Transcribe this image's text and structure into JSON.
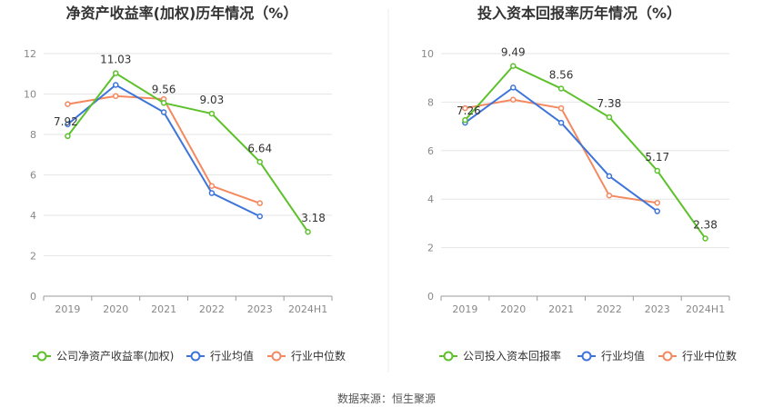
{
  "source_label": "数据来源：恒生聚源",
  "colors": {
    "company": "#5cc12b",
    "industry_avg": "#3d74d9",
    "industry_median": "#f4895f"
  },
  "legend": {
    "industry_avg": "行业均值",
    "industry_median": "行业中位数"
  },
  "chart_data": [
    {
      "type": "line",
      "title": "净资产收益率(加权)历年情况（%）",
      "categories": [
        "2019",
        "2020",
        "2021",
        "2022",
        "2023",
        "2024H1"
      ],
      "ylim": [
        0,
        12
      ],
      "yticks": [
        0,
        2,
        4,
        6,
        8,
        10,
        12
      ],
      "grid": true,
      "legend_position": "bottom",
      "series": [
        {
          "name": "公司净资产收益率(加权)",
          "key": "company",
          "values": [
            7.92,
            11.03,
            9.56,
            9.03,
            6.64,
            3.18
          ],
          "labels": [
            "7.92",
            "11.03",
            "9.56",
            "9.03",
            "6.64",
            "3.18"
          ]
        },
        {
          "name": "行业均值",
          "key": "industry_avg",
          "values": [
            8.5,
            10.45,
            9.1,
            5.1,
            3.95,
            null
          ]
        },
        {
          "name": "行业中位数",
          "key": "industry_median",
          "values": [
            9.5,
            9.9,
            9.75,
            5.45,
            4.6,
            null
          ]
        }
      ]
    },
    {
      "type": "line",
      "title": "投入资本回报率历年情况（%）",
      "categories": [
        "2019",
        "2020",
        "2021",
        "2022",
        "2023",
        "2024H1"
      ],
      "ylim": [
        0,
        10
      ],
      "yticks": [
        0,
        2,
        4,
        6,
        8,
        10
      ],
      "grid": true,
      "legend_position": "bottom",
      "series": [
        {
          "name": "公司投入资本回报率",
          "key": "company",
          "values": [
            7.26,
            9.49,
            8.56,
            7.38,
            5.17,
            2.38
          ],
          "labels": [
            "7.26",
            "9.49",
            "8.56",
            "7.38",
            "5.17",
            "2.38"
          ]
        },
        {
          "name": "行业均值",
          "key": "industry_avg",
          "values": [
            7.15,
            8.6,
            7.15,
            4.95,
            3.5,
            null
          ]
        },
        {
          "name": "行业中位数",
          "key": "industry_median",
          "values": [
            7.75,
            8.1,
            7.75,
            4.15,
            3.85,
            null
          ]
        }
      ]
    }
  ]
}
